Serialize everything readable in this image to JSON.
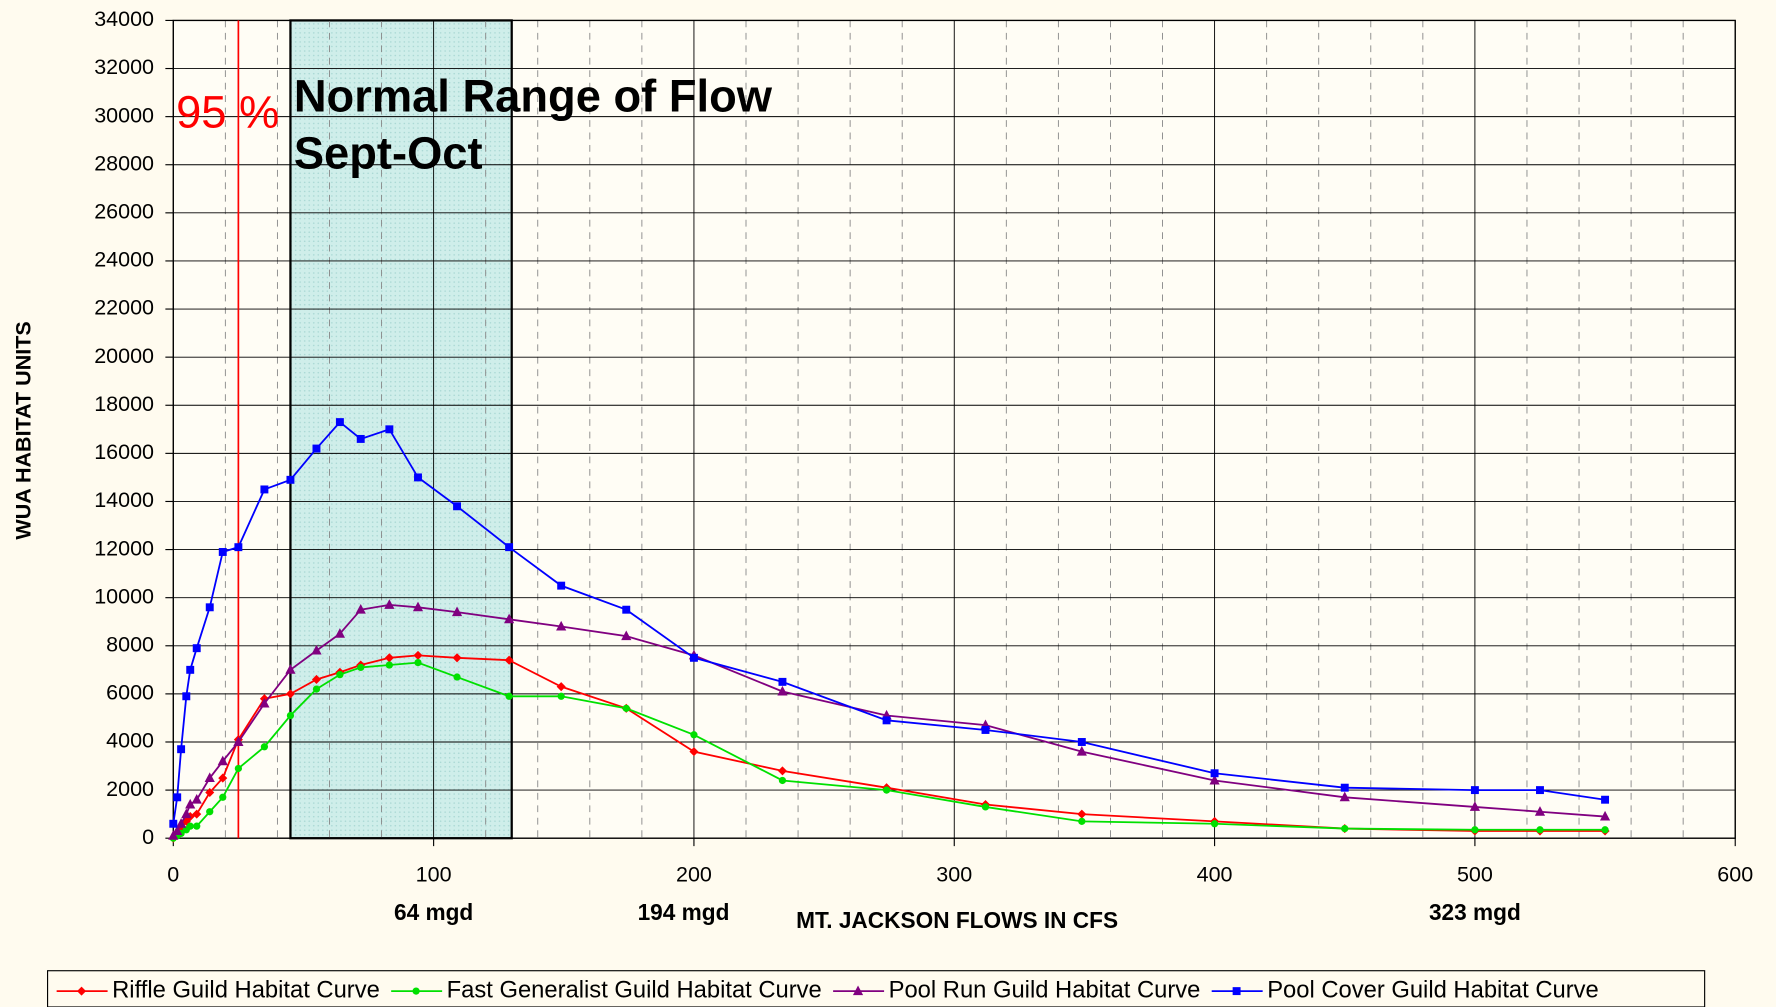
{
  "chart_data": {
    "type": "line",
    "ylabel": "WUA HABITAT UNITS",
    "xlabel": "MT. JACKSON FLOWS IN CFS",
    "x": [
      0,
      1.5,
      3,
      5,
      6.5,
      9,
      14,
      19,
      25,
      35,
      45,
      55,
      64,
      72,
      83,
      94,
      109,
      129,
      149,
      174,
      200,
      234,
      274,
      312,
      349,
      400,
      450,
      500,
      525,
      550
    ],
    "series": [
      {
        "name": "Riffle Guild Habitat Curve",
        "color": "#ff0000",
        "marker": "diamond",
        "values": [
          0,
          200,
          400,
          700,
          900,
          1000,
          1900,
          2500,
          4100,
          5800,
          6000,
          6600,
          6900,
          7200,
          7500,
          7600,
          7500,
          7400,
          6300,
          5400,
          3600,
          2800,
          2100,
          1400,
          1000,
          700,
          400,
          300,
          300,
          300
        ]
      },
      {
        "name": "Fast Generalist Guild Habitat Curve",
        "color": "#00e000",
        "marker": "circle",
        "values": [
          0,
          100,
          200,
          350,
          500,
          500,
          1100,
          1700,
          2900,
          3800,
          5100,
          6200,
          6800,
          7100,
          7200,
          7300,
          6700,
          5900,
          5900,
          5400,
          4300,
          2400,
          2000,
          1300,
          700,
          600,
          400,
          350,
          350,
          350
        ]
      },
      {
        "name": "Pool Run Guild Habitat Curve",
        "color": "#800080",
        "marker": "triangle",
        "values": [
          100,
          300,
          600,
          1000,
          1400,
          1600,
          2500,
          3200,
          4000,
          5600,
          7000,
          7800,
          8500,
          9500,
          9700,
          9600,
          9400,
          9100,
          8800,
          8400,
          7600,
          6100,
          5100,
          4700,
          3600,
          2400,
          1700,
          1300,
          1100,
          900
        ]
      },
      {
        "name": "Pool Cover Guild Habitat Curve",
        "color": "#0000ff",
        "marker": "square",
        "values": [
          600,
          1700,
          3700,
          5900,
          7000,
          7900,
          9600,
          11900,
          12100,
          14500,
          14900,
          16200,
          17300,
          16600,
          17000,
          15000,
          13800,
          12100,
          10500,
          9500,
          7500,
          6500,
          4900,
          4500,
          4000,
          2700,
          2100,
          2000,
          2000,
          1600
        ]
      }
    ],
    "xlim": [
      0,
      600
    ],
    "xticks": [
      0,
      100,
      200,
      300,
      400,
      500,
      600
    ],
    "ylim": [
      0,
      34000
    ],
    "yticks": [
      0,
      2000,
      4000,
      6000,
      8000,
      10000,
      12000,
      14000,
      16000,
      18000,
      20000,
      22000,
      24000,
      26000,
      28000,
      30000,
      32000,
      34000
    ],
    "grid": true,
    "percent_line": {
      "x": 25,
      "label": "95 %"
    },
    "shaded_range": {
      "from": 45,
      "to": 130,
      "label_line1": "Normal Range of Flow",
      "label_line2": "Sept-Oct"
    },
    "annotations": [
      {
        "x": 100,
        "text": "64 mgd"
      },
      {
        "x": 196,
        "text": "194 mgd"
      },
      {
        "x": 500,
        "text": "323 mgd"
      }
    ]
  }
}
